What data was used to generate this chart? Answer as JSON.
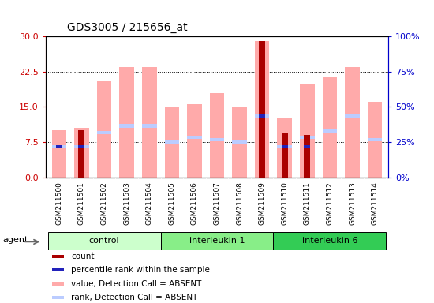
{
  "title": "GDS3005 / 215656_at",
  "samples": [
    "GSM211500",
    "GSM211501",
    "GSM211502",
    "GSM211503",
    "GSM211504",
    "GSM211505",
    "GSM211506",
    "GSM211507",
    "GSM211508",
    "GSM211509",
    "GSM211510",
    "GSM211511",
    "GSM211512",
    "GSM211513",
    "GSM211514"
  ],
  "value_absent": [
    10.0,
    10.5,
    20.5,
    23.5,
    23.5,
    15.0,
    15.5,
    18.0,
    15.0,
    29.0,
    12.5,
    20.0,
    21.5,
    23.5,
    16.0
  ],
  "rank_absent": [
    6.5,
    6.5,
    9.5,
    11.0,
    11.0,
    7.5,
    8.5,
    8.0,
    7.5,
    13.0,
    6.5,
    8.5,
    10.0,
    13.0,
    8.0
  ],
  "count_red": [
    0,
    10.0,
    0,
    0,
    0,
    0,
    0,
    0,
    0,
    29.0,
    9.5,
    9.0,
    0,
    0,
    0
  ],
  "percentile_blue": [
    6.5,
    6.5,
    0,
    0,
    0,
    0,
    0,
    0,
    0,
    13.0,
    6.5,
    6.5,
    0,
    0,
    0
  ],
  "ylim_left": [
    0,
    30
  ],
  "ylim_right": [
    0,
    100
  ],
  "yticks_left": [
    0,
    7.5,
    15,
    22.5,
    30
  ],
  "yticks_right": [
    0,
    25,
    50,
    75,
    100
  ],
  "left_color": "#cc0000",
  "right_color": "#0000cc",
  "bar_color_value": "#ffaaaa",
  "bar_color_rank": "#bbccff",
  "bar_color_count": "#aa0000",
  "bar_color_percentile": "#2222bb",
  "groups_info": [
    {
      "label": "control",
      "start": 0,
      "end": 4,
      "color": "#ccffcc"
    },
    {
      "label": "interleukin 1",
      "start": 5,
      "end": 9,
      "color": "#88ee88"
    },
    {
      "label": "interleukin 6",
      "start": 10,
      "end": 14,
      "color": "#33cc55"
    }
  ],
  "legend_items": [
    {
      "color": "#aa0000",
      "label": "count"
    },
    {
      "color": "#2222bb",
      "label": "percentile rank within the sample"
    },
    {
      "color": "#ffaaaa",
      "label": "value, Detection Call = ABSENT"
    },
    {
      "color": "#bbccff",
      "label": "rank, Detection Call = ABSENT"
    }
  ]
}
